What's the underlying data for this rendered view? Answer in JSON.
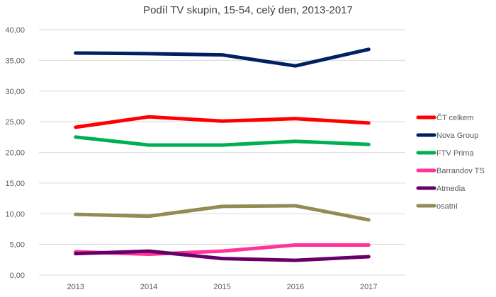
{
  "chart_data": {
    "type": "line",
    "title": "Podíl TV skupin, 15-54, celý den, 2013-2017",
    "categories": [
      "2013",
      "2014",
      "2015",
      "2016",
      "2017"
    ],
    "ylim": [
      0,
      40
    ],
    "yticks": [
      "0,00",
      "5,00",
      "10,00",
      "15,00",
      "20,00",
      "25,00",
      "30,00",
      "35,00",
      "40,00"
    ],
    "grid": true,
    "legend": "right",
    "series": [
      {
        "name": "ČT celkem",
        "color": "#ff0000",
        "values": [
          24.1,
          25.8,
          25.1,
          25.5,
          24.8
        ]
      },
      {
        "name": "Nova Group",
        "color": "#002060",
        "values": [
          36.2,
          36.1,
          35.9,
          34.1,
          36.8
        ]
      },
      {
        "name": "FTV Prima",
        "color": "#00b050",
        "values": [
          22.5,
          21.2,
          21.2,
          21.8,
          21.3
        ]
      },
      {
        "name": "Barrandov TS",
        "color": "#ff3399",
        "values": [
          3.8,
          3.4,
          3.9,
          4.9,
          4.9
        ]
      },
      {
        "name": "Atmedia",
        "color": "#660066",
        "values": [
          3.5,
          3.9,
          2.7,
          2.4,
          3.0
        ]
      },
      {
        "name": "osatní",
        "color": "#948a54",
        "values": [
          9.9,
          9.6,
          11.2,
          11.3,
          9.0
        ]
      }
    ]
  }
}
